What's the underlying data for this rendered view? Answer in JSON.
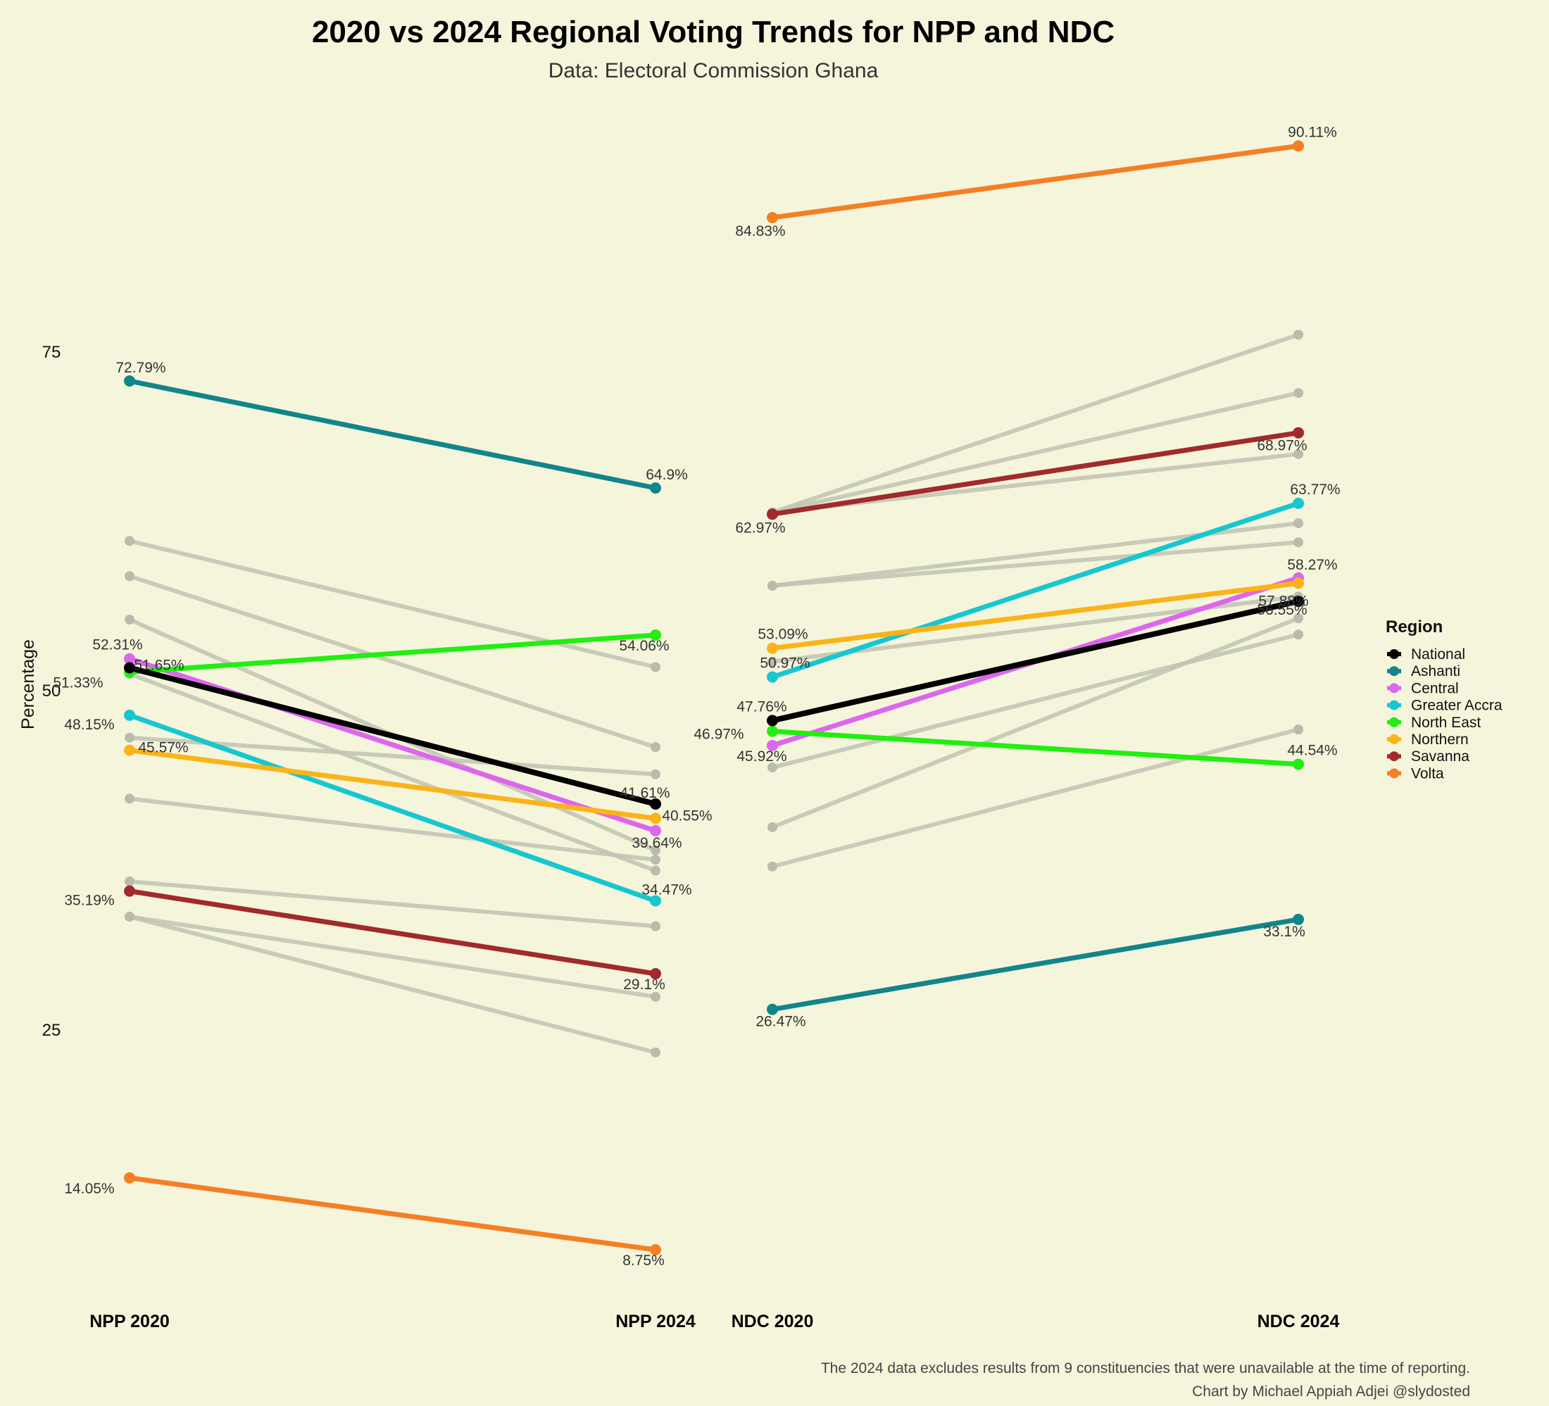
{
  "chart_data": {
    "type": "line",
    "title": "2020 vs 2024 Regional Voting Trends for NPP and NDC",
    "subtitle": "Data: Electoral Commission Ghana",
    "ylabel": "Percentage",
    "y_ticks": [
      "75",
      "50",
      "25"
    ],
    "ylim": [
      5,
      94
    ],
    "x": [
      "NPP 2020",
      "NPP 2024",
      "NDC 2020",
      "NDC 2024"
    ],
    "legend": {
      "title": "Region",
      "position": "right"
    },
    "series": [
      {
        "name": "National",
        "color": "#000000",
        "npp": [
          51.65,
          41.61
        ],
        "ndc": [
          47.76,
          56.55
        ],
        "labels": [
          "51.65%",
          "41.61%",
          "47.76%",
          "56.55%"
        ]
      },
      {
        "name": "Ashanti",
        "color": "#12858a",
        "npp": [
          72.79,
          64.9
        ],
        "ndc": [
          26.47,
          33.1
        ],
        "labels": [
          "72.79%",
          "64.9%",
          "26.47%",
          "33.1%"
        ]
      },
      {
        "name": "Central",
        "color": "#dd66ee",
        "npp": [
          52.31,
          39.64
        ],
        "ndc": [
          45.92,
          58.27
        ],
        "labels": [
          "52.31%",
          "39.64%",
          "45.92%",
          "58.27%"
        ]
      },
      {
        "name": "Greater Accra",
        "color": "#17c7cf",
        "npp": [
          48.15,
          34.47
        ],
        "ndc": [
          50.97,
          63.77
        ],
        "labels": [
          "48.15%",
          "34.47%",
          "50.97%",
          "63.77%"
        ]
      },
      {
        "name": "North East",
        "color": "#22ee11",
        "npp": [
          51.33,
          54.06
        ],
        "ndc": [
          46.97,
          44.54
        ],
        "labels": [
          "51.33%",
          "54.06%",
          "46.97%",
          "44.54%"
        ]
      },
      {
        "name": "Northern",
        "color": "#fbb317",
        "npp": [
          45.57,
          40.55
        ],
        "ndc": [
          53.09,
          57.88
        ],
        "labels": [
          "45.57%",
          "40.55%",
          "53.09%",
          "57.88%"
        ]
      },
      {
        "name": "Savanna",
        "color": "#a12a2a",
        "npp": [
          35.19,
          29.1
        ],
        "ndc": [
          62.97,
          68.97
        ],
        "labels": [
          "35.19%",
          "29.1%",
          "62.97%",
          "68.97%"
        ]
      },
      {
        "name": "Volta",
        "color": "#f47f24",
        "npp": [
          14.05,
          8.75
        ],
        "ndc": [
          84.83,
          90.11
        ],
        "labels": [
          "14.05%",
          "8.75%",
          "84.83%",
          "90.11%"
        ]
      }
    ],
    "other_regions": {
      "color": "#c2c4b4",
      "npp": [
        [
          61,
          51.7
        ],
        [
          58.4,
          45.8
        ],
        [
          55.2,
          38.2
        ],
        [
          51.2,
          36.7
        ],
        [
          46.5,
          43.8
        ],
        [
          42,
          37.5
        ],
        [
          35.9,
          32.6
        ],
        [
          33.3,
          27.4
        ],
        [
          33.3,
          23.3
        ]
      ],
      "ndc": [
        [
          63.1,
          76.2
        ],
        [
          63.1,
          71.9
        ],
        [
          57.7,
          62.3
        ],
        [
          44.3,
          54.1
        ],
        [
          39.9,
          55.3
        ],
        [
          37,
          47.1
        ],
        [
          63.1,
          67.4
        ],
        [
          57.7,
          60.9
        ],
        [
          52.1,
          56.9
        ]
      ]
    },
    "caption": [
      "The 2024 data excludes results from 9 constituencies that were unavailable at the time of reporting.",
      "Chart by Michael Appiah Adjei @slydosted"
    ]
  }
}
